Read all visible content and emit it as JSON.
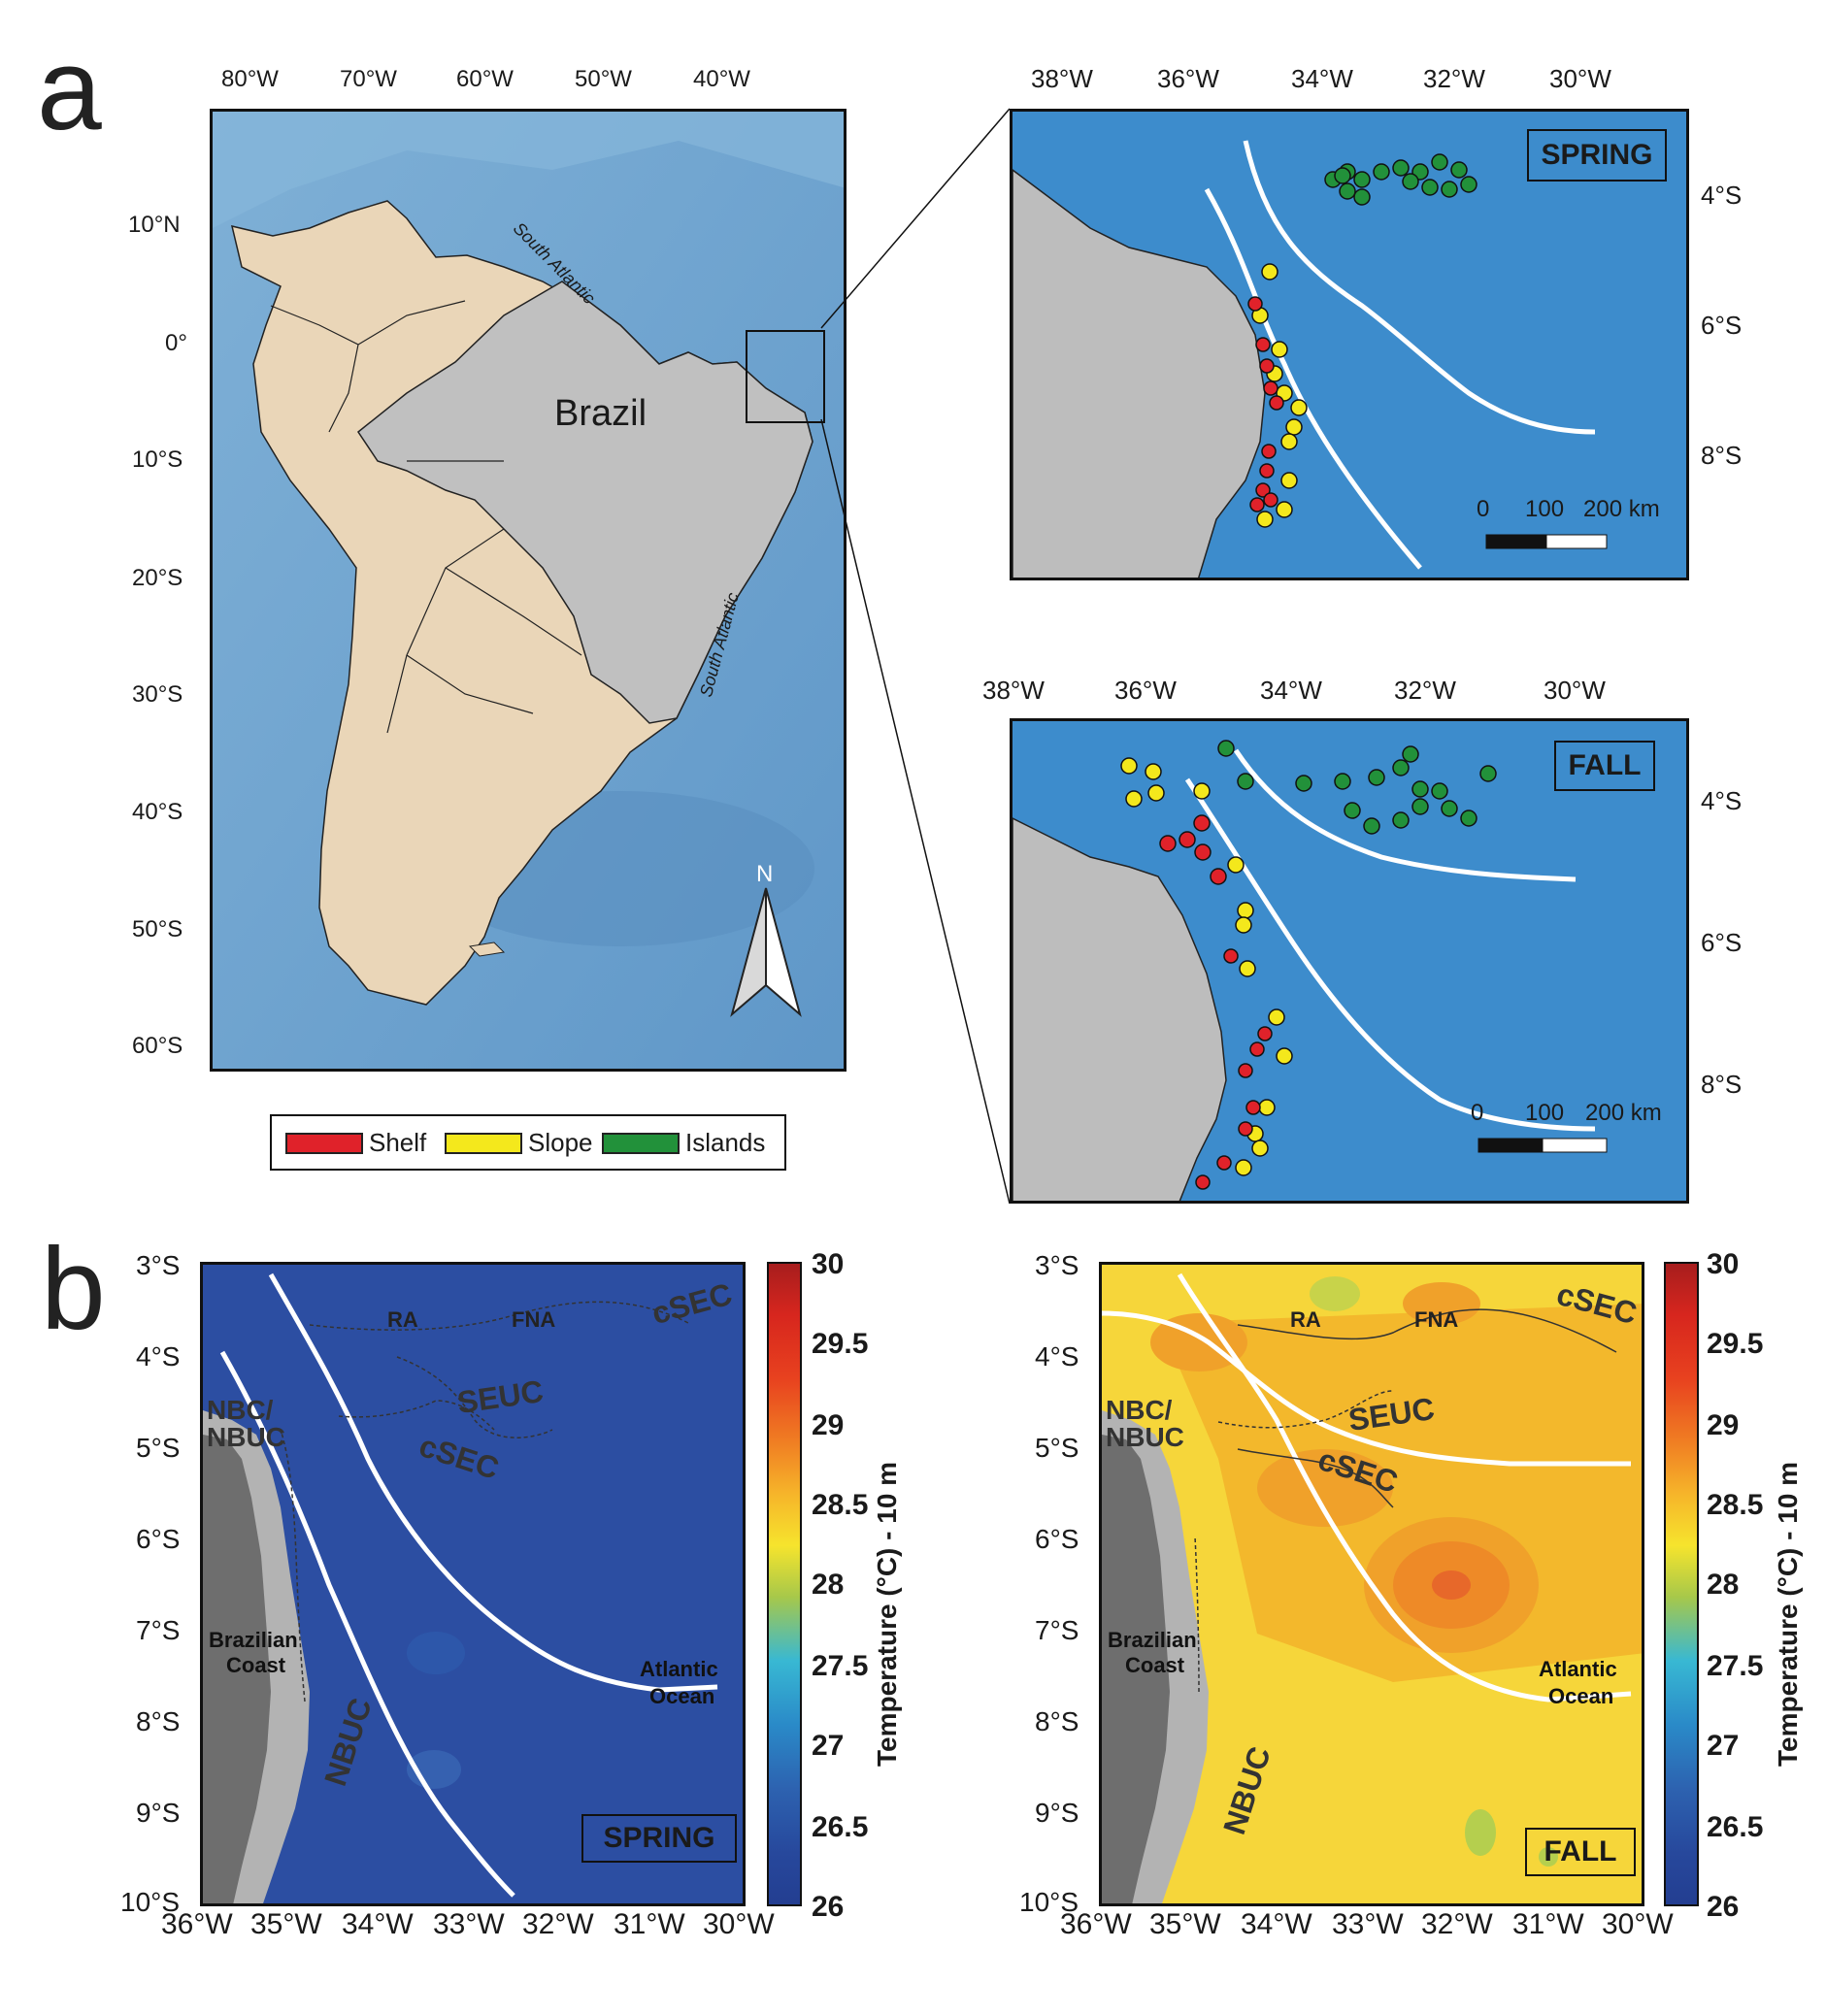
{
  "panel_labels": {
    "a": "a",
    "b": "b"
  },
  "overview": {
    "lon_labels": [
      "80°W",
      "70°W",
      "60°W",
      "50°W",
      "40°W"
    ],
    "lat_labels": [
      "10°N",
      "0°",
      "10°S",
      "20°S",
      "30°S",
      "40°S",
      "50°S",
      "60°S"
    ],
    "country_label": "Brazil",
    "ocean_label_1": "South Atlantic",
    "ocean_label_2": "South Atlantic",
    "north_arrow": "N"
  },
  "inset_spring": {
    "lon_labels": [
      "38°W",
      "36°W",
      "34°W",
      "32°W",
      "30°W"
    ],
    "lat_labels": [
      "4°S",
      "6°S",
      "8°S"
    ],
    "season": "SPRING",
    "scale_labels": [
      "0",
      "100",
      "200 km"
    ]
  },
  "inset_fall": {
    "lon_labels": [
      "38°W",
      "36°W",
      "34°W",
      "32°W",
      "30°W"
    ],
    "lat_labels": [
      "4°S",
      "6°S",
      "8°S"
    ],
    "season": "FALL",
    "scale_labels": [
      "0",
      "100",
      "200 km"
    ]
  },
  "legend": [
    {
      "label": "Shelf",
      "color": "#e0222a"
    },
    {
      "label": "Slope",
      "color": "#f4e81c"
    },
    {
      "label": "Islands",
      "color": "#22913a"
    }
  ],
  "temp_spring": {
    "lat_labels": [
      "3°S",
      "4°S",
      "5°S",
      "6°S",
      "7°S",
      "8°S",
      "9°S",
      "10°S"
    ],
    "lon_labels": [
      "36°W",
      "35°W",
      "34°W",
      "33°W",
      "32°W",
      "31°W",
      "30°W"
    ],
    "season": "SPRING",
    "currents": [
      "cSEC",
      "SEUC",
      "cSEC",
      "NBC/",
      "NBUC",
      "NBUC"
    ],
    "places": [
      "RA",
      "FNA"
    ],
    "coast_label_1": "Brazilian",
    "coast_label_2": "Coast",
    "ocean_label_1": "Atlantic",
    "ocean_label_2": "Ocean"
  },
  "temp_fall": {
    "lat_labels": [
      "3°S",
      "4°S",
      "5°S",
      "6°S",
      "7°S",
      "8°S",
      "9°S",
      "10°S"
    ],
    "lon_labels": [
      "36°W",
      "35°W",
      "34°W",
      "33°W",
      "32°W",
      "31°W",
      "30°W"
    ],
    "season": "FALL",
    "currents": [
      "cSEC",
      "SEUC",
      "cSEC",
      "NBC/",
      "NBUC",
      "NBUC"
    ],
    "places": [
      "RA",
      "FNA"
    ],
    "coast_label_1": "Brazilian",
    "coast_label_2": "Coast",
    "ocean_label_1": "Atlantic",
    "ocean_label_2": "Ocean"
  },
  "colorbar": {
    "title": "Temperature (°C) - 10 m",
    "ticks": [
      "30",
      "29.5",
      "29",
      "28.5",
      "28",
      "27.5",
      "27",
      "26.5",
      "26"
    ],
    "colors": [
      "#a71d1d",
      "#d7261e",
      "#e8421f",
      "#f07f23",
      "#f6b52a",
      "#f6e42d",
      "#a7c84a",
      "#38b8d3",
      "#2a8ac8",
      "#2d62b0",
      "#27489c",
      "#233e91"
    ]
  }
}
